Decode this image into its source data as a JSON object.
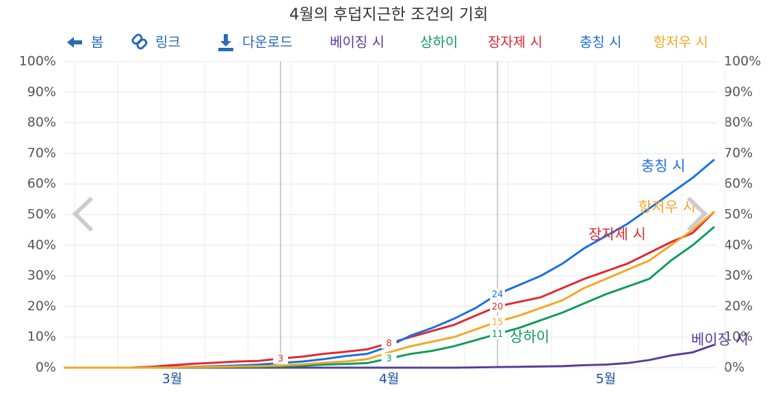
{
  "toolbar": {
    "back": "봄",
    "link": "링크",
    "download": "다운로드"
  },
  "chart_data": {
    "type": "line",
    "title": "4월의 후덥지근한 조건의 기회",
    "categories": [
      null,
      null,
      null,
      null,
      null,
      "3월",
      null,
      null,
      null,
      null,
      null,
      null,
      null,
      null,
      null,
      "4월",
      null,
      null,
      null,
      null,
      null,
      null,
      null,
      null,
      null,
      "5월",
      null,
      null,
      null,
      null,
      null
    ],
    "ylim": [
      0,
      100
    ],
    "yticks": [
      {
        "value": 0,
        "label": "0%"
      },
      {
        "value": 10,
        "label": "10%"
      },
      {
        "value": 20,
        "label": "20%"
      },
      {
        "value": 30,
        "label": "30%"
      },
      {
        "value": 40,
        "label": "40%"
      },
      {
        "value": 50,
        "label": "50%"
      },
      {
        "value": 60,
        "label": "60%"
      },
      {
        "value": 70,
        "label": "70%"
      },
      {
        "value": 80,
        "label": "80%"
      },
      {
        "value": 90,
        "label": "90%"
      },
      {
        "value": 100,
        "label": "100%"
      }
    ],
    "grid": true,
    "vlines": [
      10,
      20
    ],
    "series": [
      {
        "name": "베이징 시",
        "color": "#5b3b9b",
        "values": [
          0,
          0,
          0,
          0,
          0,
          0,
          0,
          0,
          0,
          0,
          0,
          0,
          0,
          0,
          0,
          0,
          0,
          0,
          0,
          0.1,
          0.2,
          0.3,
          0.4,
          0.5,
          0.8,
          1,
          1.5,
          2.5,
          4,
          5,
          7.5
        ],
        "labeled_indexes": []
      },
      {
        "name": "상하이",
        "color": "#0d9c5a",
        "values": [
          0,
          0,
          0,
          0,
          0,
          0,
          0,
          0.1,
          0.2,
          0.3,
          0.4,
          0.6,
          1,
          1.2,
          1.5,
          3,
          4.5,
          5.5,
          7,
          9,
          11,
          13,
          15.5,
          18,
          21,
          24,
          26.5,
          29,
          35,
          40,
          46
        ],
        "labeled_indexes": [
          15,
          20
        ]
      },
      {
        "name": "장자제 시",
        "color": "#e0282e",
        "values": [
          0,
          0,
          0,
          0,
          0.3,
          0.8,
          1.3,
          1.6,
          2,
          2.2,
          3,
          3.6,
          4.5,
          5.2,
          6,
          8,
          10,
          12,
          14,
          17,
          20,
          21.5,
          23,
          26,
          29,
          31.5,
          34,
          37.5,
          41,
          44,
          51
        ],
        "labeled_indexes": [
          10,
          15,
          20
        ]
      },
      {
        "name": "충칭 시",
        "color": "#1a6ee8",
        "values": [
          0,
          0,
          0,
          0,
          0,
          0.2,
          0.3,
          0.5,
          0.7,
          1,
          1.5,
          2,
          2.8,
          3.8,
          4.5,
          7,
          10.5,
          13,
          16,
          19.5,
          24,
          27,
          30,
          34,
          39,
          43,
          47,
          52,
          57,
          62,
          68
        ],
        "labeled_indexes": [
          20
        ]
      },
      {
        "name": "항저우 시",
        "color": "#f5a623",
        "values": [
          0,
          0,
          0,
          0,
          0,
          0.1,
          0.2,
          0.3,
          0.4,
          0.5,
          0.7,
          1.1,
          1.6,
          2,
          2.8,
          5,
          7,
          8.5,
          10,
          12.5,
          15,
          17,
          19.5,
          22,
          26,
          29,
          32,
          35,
          40,
          45,
          51
        ],
        "labeled_indexes": [
          20
        ]
      }
    ]
  }
}
